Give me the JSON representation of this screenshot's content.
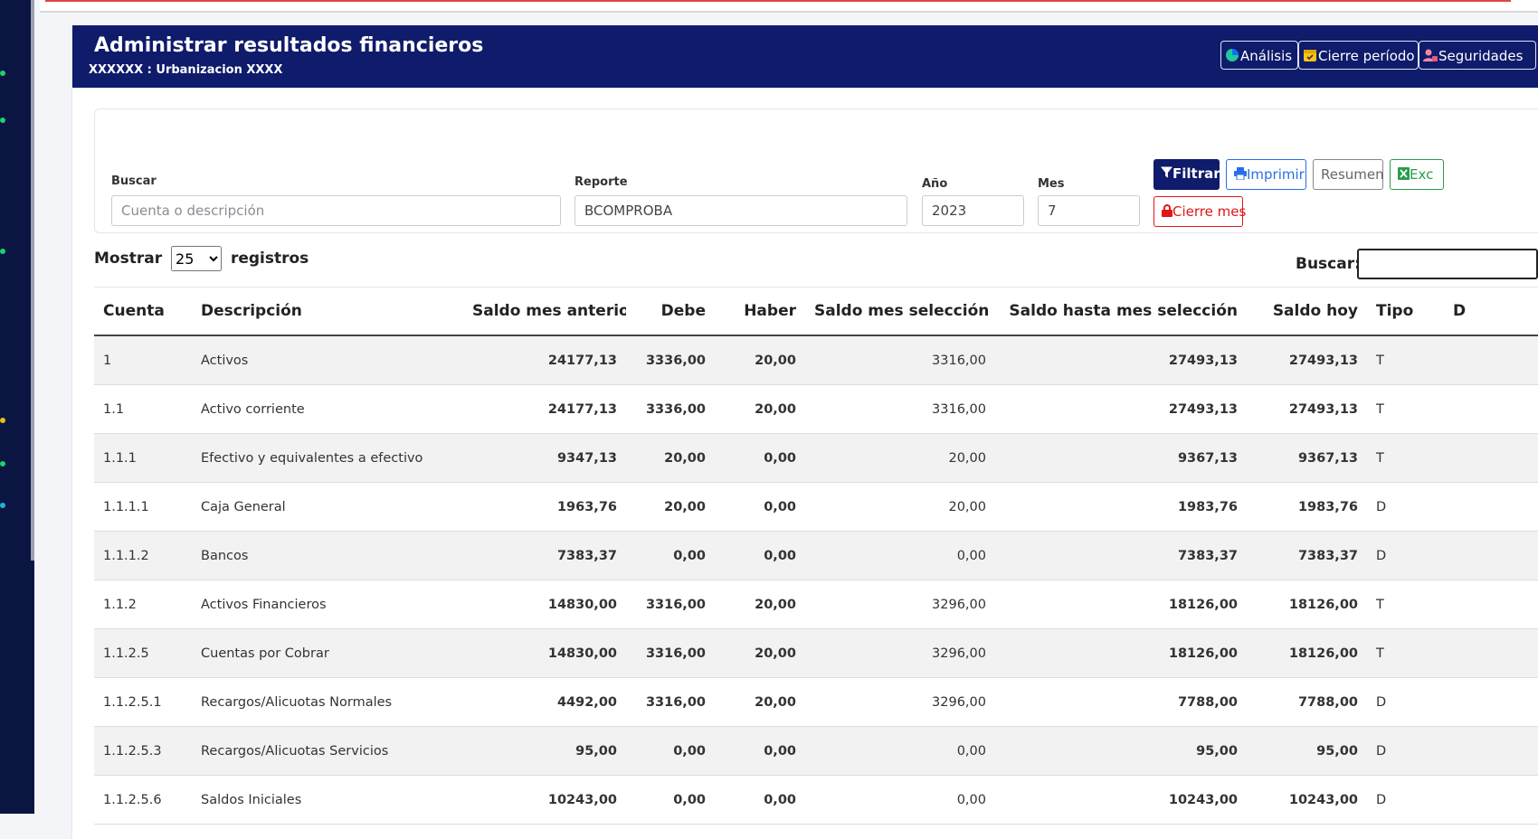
{
  "page": {
    "title": "Administrar resultados financieros",
    "subtitle": "XXXXXX : Urbanizacion XXXX"
  },
  "header_buttons": {
    "analysis": "Análisis",
    "period_close": "Cierre período",
    "security": "Seguridades"
  },
  "filters": {
    "search_label": "Buscar",
    "search_placeholder": "Cuenta o descripción",
    "report_label": "Reporte",
    "report_value": "BCOMPROBA",
    "year_label": "Año",
    "year_value": "2023",
    "month_label": "Mes",
    "month_value": "7",
    "filter_button": "Filtrar",
    "print_button": "Imprimir",
    "summary_button": "Resumen",
    "excel_button": "Exc",
    "close_month_button": "Cierre mes"
  },
  "datatable": {
    "show_label": "Mostrar",
    "page_size": "25",
    "records_label": "registros",
    "search_label": "Buscar:"
  },
  "table": {
    "columns": {
      "account": "Cuenta",
      "description": "Descripción",
      "prev_balance": "Saldo mes anterior",
      "debit": "Debe",
      "credit": "Haber",
      "month_balance": "Saldo mes selección",
      "cumulative_balance": "Saldo hasta mes selección",
      "today_balance": "Saldo hoy",
      "type": "Tipo",
      "extra": "D"
    },
    "rows": [
      {
        "account": "1",
        "description": "Activos",
        "prev": "24177,13",
        "debit": "3336,00",
        "credit": "20,00",
        "month": "3316,00",
        "cumulative": "27493,13",
        "today": "27493,13",
        "type": "T"
      },
      {
        "account": "1.1",
        "description": "Activo corriente",
        "prev": "24177,13",
        "debit": "3336,00",
        "credit": "20,00",
        "month": "3316,00",
        "cumulative": "27493,13",
        "today": "27493,13",
        "type": "T"
      },
      {
        "account": "1.1.1",
        "description": "Efectivo y equivalentes a efectivo",
        "prev": "9347,13",
        "debit": "20,00",
        "credit": "0,00",
        "month": "20,00",
        "cumulative": "9367,13",
        "today": "9367,13",
        "type": "T"
      },
      {
        "account": "1.1.1.1",
        "description": "Caja General",
        "prev": "1963,76",
        "debit": "20,00",
        "credit": "0,00",
        "month": "20,00",
        "cumulative": "1983,76",
        "today": "1983,76",
        "type": "D"
      },
      {
        "account": "1.1.1.2",
        "description": "Bancos",
        "prev": "7383,37",
        "debit": "0,00",
        "credit": "0,00",
        "month": "0,00",
        "cumulative": "7383,37",
        "today": "7383,37",
        "type": "D"
      },
      {
        "account": "1.1.2",
        "description": "Activos Financieros",
        "prev": "14830,00",
        "debit": "3316,00",
        "credit": "20,00",
        "month": "3296,00",
        "cumulative": "18126,00",
        "today": "18126,00",
        "type": "T"
      },
      {
        "account": "1.1.2.5",
        "description": "Cuentas por Cobrar",
        "prev": "14830,00",
        "debit": "3316,00",
        "credit": "20,00",
        "month": "3296,00",
        "cumulative": "18126,00",
        "today": "18126,00",
        "type": "T"
      },
      {
        "account": "1.1.2.5.1",
        "description": "Recargos/Alicuotas Normales",
        "prev": "4492,00",
        "debit": "3316,00",
        "credit": "20,00",
        "month": "3296,00",
        "cumulative": "7788,00",
        "today": "7788,00",
        "type": "D"
      },
      {
        "account": "1.1.2.5.3",
        "description": "Recargos/Alicuotas Servicios",
        "prev": "95,00",
        "debit": "0,00",
        "credit": "0,00",
        "month": "0,00",
        "cumulative": "95,00",
        "today": "95,00",
        "type": "D"
      },
      {
        "account": "1.1.2.5.6",
        "description": "Saldos Iniciales",
        "prev": "10243,00",
        "debit": "0,00",
        "credit": "0,00",
        "month": "0,00",
        "cumulative": "10243,00",
        "today": "10243,00",
        "type": "D"
      }
    ]
  },
  "colors": {
    "header_bg": "#0f1b6b",
    "sidebar_bg": "#0b1541",
    "positive_link": "#1a3fcf",
    "negative_red": "#e01616",
    "filter_button_bg": "#0f1b6b",
    "print_blue": "#2a6ee8",
    "excel_green": "#2a9d4a"
  }
}
